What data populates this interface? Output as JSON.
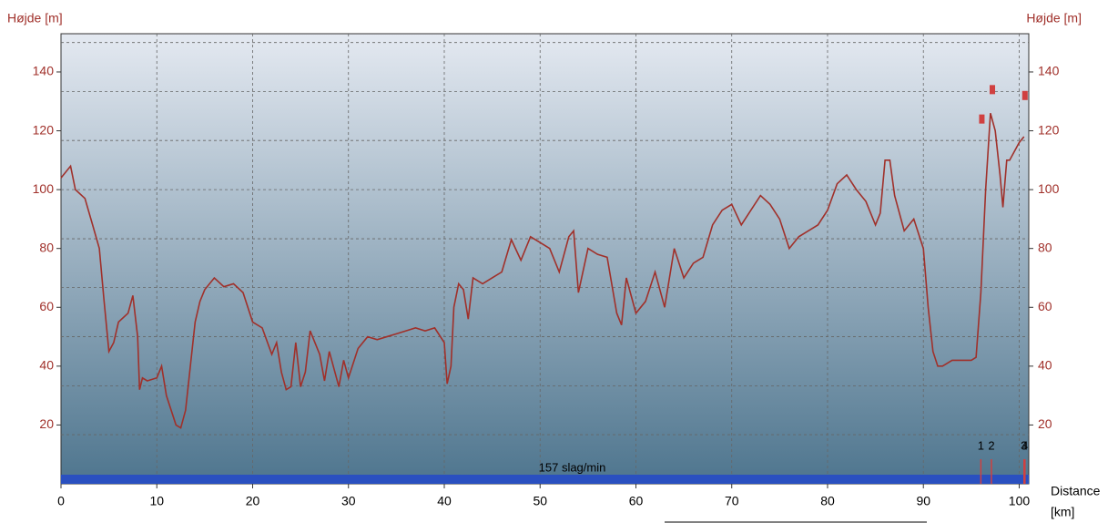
{
  "chart_data": {
    "type": "line",
    "y_label": "Højde [m]",
    "y2_label": "Højde [m]",
    "x_label": "Distance",
    "x_unit": "[km]",
    "xlim": [
      0,
      101
    ],
    "ylim": [
      0,
      153
    ],
    "xticks": [
      0,
      10,
      20,
      30,
      40,
      50,
      60,
      70,
      80,
      90,
      100
    ],
    "yticks": [
      20,
      40,
      60,
      80,
      100,
      120,
      140
    ],
    "ygrid": [
      16.7,
      33.3,
      50,
      66.7,
      83.3,
      100,
      116.7,
      133.3,
      150
    ],
    "grid": true,
    "color": "#a0302a",
    "x": [
      0,
      1,
      1.5,
      2.5,
      3.3,
      4,
      4.5,
      5,
      5.5,
      6,
      7,
      7.5,
      8,
      8.2,
      8.5,
      9,
      10,
      10.5,
      11,
      12,
      12.5,
      13,
      13.5,
      14,
      14.5,
      15,
      16,
      17,
      18,
      19,
      20,
      21,
      22,
      22.5,
      23,
      23.5,
      24,
      24.5,
      25,
      25.5,
      26,
      27,
      27.5,
      28,
      28.5,
      29,
      29.5,
      30,
      31,
      32,
      33,
      34,
      35,
      36,
      37,
      38,
      39,
      40,
      40.3,
      40.7,
      41,
      41.5,
      42,
      42.5,
      43,
      44,
      45,
      46,
      47,
      48,
      49,
      50,
      51,
      52,
      53,
      53.5,
      54,
      55,
      56,
      57,
      58,
      58.5,
      59,
      60,
      61,
      62,
      63,
      64,
      65,
      66,
      67,
      68,
      69,
      70,
      71,
      72,
      73,
      74,
      75,
      76,
      77,
      78,
      79,
      80,
      81,
      82,
      83,
      84,
      85,
      85.5,
      86,
      86.5,
      87,
      88,
      89,
      90,
      90.5,
      91,
      91.5,
      92,
      93,
      94,
      95,
      95.5,
      96,
      96.5,
      97,
      97.5,
      98,
      98.3,
      98.7,
      99,
      100,
      100.5
    ],
    "values": [
      104,
      108,
      100,
      97,
      88,
      80,
      62,
      45,
      48,
      55,
      58,
      64,
      50,
      32,
      36,
      35,
      36,
      40,
      30,
      20,
      19,
      25,
      40,
      55,
      62,
      66,
      70,
      67,
      68,
      65,
      55,
      53,
      44,
      48,
      38,
      32,
      33,
      48,
      33,
      38,
      52,
      44,
      35,
      45,
      39,
      33,
      42,
      36,
      46,
      50,
      49,
      50,
      51,
      52,
      53,
      52,
      53,
      48,
      34,
      40,
      60,
      68,
      66,
      56,
      70,
      68,
      70,
      72,
      83,
      76,
      84,
      82,
      80,
      72,
      84,
      86,
      65,
      80,
      78,
      77,
      58,
      54,
      70,
      58,
      62,
      72,
      60,
      80,
      70,
      75,
      77,
      88,
      93,
      95,
      88,
      93,
      98,
      95,
      90,
      80,
      84,
      86,
      88,
      93,
      102,
      105,
      100,
      96,
      88,
      92,
      110,
      110,
      98,
      86,
      90,
      80,
      60,
      45,
      40,
      40,
      42,
      42,
      42,
      43,
      65,
      100,
      126,
      120,
      105,
      94,
      110,
      110,
      116,
      118
    ],
    "band_label": "157 slag/min",
    "band_color": "#2a50c0",
    "markers": [
      {
        "label": "1",
        "x": 96
      },
      {
        "label": "2",
        "x": 97.1
      },
      {
        "label": "3",
        "x": 100.5
      },
      {
        "label": "4",
        "x": 100.6
      }
    ],
    "marker_color": "#d04040",
    "points": {
      "x": [
        96.1,
        97.2,
        100.6
      ],
      "y": [
        124,
        134,
        132
      ]
    }
  }
}
